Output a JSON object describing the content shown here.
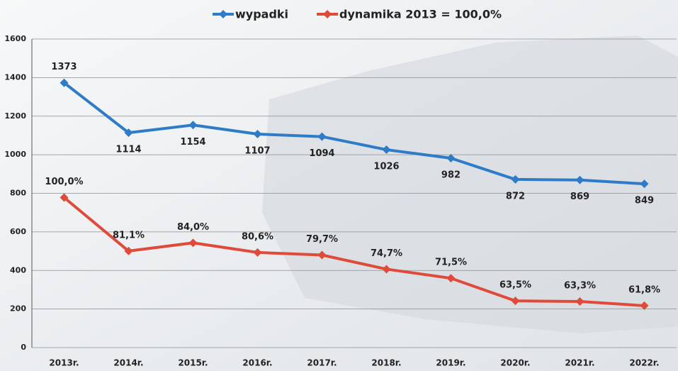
{
  "chart_data": {
    "type": "line",
    "categories": [
      "2013r.",
      "2014r.",
      "2015r.",
      "2016r.",
      "2017r.",
      "2018r.",
      "2019r.",
      "2020r.",
      "2021r.",
      "2022r."
    ],
    "series": [
      {
        "name": "wypadki",
        "color": "#2e7cc8",
        "values": [
          1373,
          1114,
          1154,
          1107,
          1094,
          1026,
          982,
          872,
          869,
          849
        ]
      },
      {
        "name": "dynamika 2013 = 100,0%",
        "color": "#e04a3a",
        "axis": "y2",
        "values": [
          100.0,
          81.1,
          84.0,
          80.6,
          79.7,
          74.7,
          71.5,
          63.5,
          63.3,
          61.8
        ],
        "value_labels": [
          "100,0%",
          "81,1%",
          "84,0%",
          "80,6%",
          "79,7%",
          "74,7%",
          "71,5%",
          "63,5%",
          "63,3%",
          "61,8%"
        ]
      }
    ],
    "ylim": [
      0,
      1600
    ],
    "yticks": [
      0,
      200,
      400,
      600,
      800,
      1000,
      1200,
      1400,
      1600
    ],
    "y2lim": [
      47,
      156
    ],
    "grid": true,
    "legend": "top"
  }
}
